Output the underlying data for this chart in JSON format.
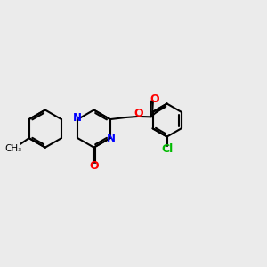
{
  "bg_color": "#ebebeb",
  "bond_color": "#000000",
  "N_color": "#0000ff",
  "O_color": "#ff0000",
  "Cl_color": "#00bb00",
  "lw": 1.5,
  "dbo": 0.008,
  "figsize": [
    3.0,
    3.0
  ],
  "dpi": 100,
  "xlim": [
    0.0,
    1.0
  ],
  "ylim": [
    0.0,
    1.0
  ]
}
